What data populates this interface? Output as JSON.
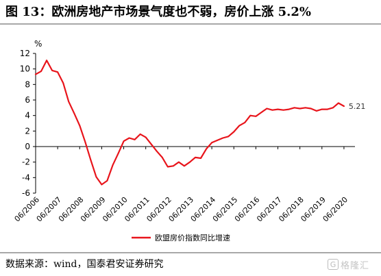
{
  "header": {
    "title": "图 13：欧洲房地产市场景气度也不弱，房价上涨 5.2%"
  },
  "footer": {
    "source": "数据来源：wind，国泰君安证券研究",
    "watermark_icon": "g-logo-icon",
    "watermark_text": "格隆汇"
  },
  "colors": {
    "series": "#e8141b",
    "axis": "#000000",
    "rules": "#a8a8a8"
  },
  "chart_data": {
    "type": "line",
    "unit_label": "%",
    "ylim": [
      -6,
      12
    ],
    "yticks": [
      -6,
      -4,
      -2,
      0,
      2,
      4,
      6,
      8,
      10,
      12
    ],
    "xlim": [
      2006.0,
      2020.5
    ],
    "xtick_labels": [
      "06/2006",
      "06/2007",
      "06/2008",
      "06/2009",
      "06/2010",
      "06/2011",
      "06/2012",
      "06/2013",
      "06/2014",
      "06/2015",
      "06/2016",
      "06/2017",
      "06/2018",
      "06/2019",
      "06/2020"
    ],
    "grid": false,
    "legend": {
      "position": "bottom-center"
    },
    "end_label": "5.21",
    "series": [
      {
        "name": "欧盟房价指数同比增速",
        "color": "#e8141b",
        "points": [
          [
            2006.0,
            9.3
          ],
          [
            2006.25,
            9.7
          ],
          [
            2006.5,
            11.1
          ],
          [
            2006.75,
            9.8
          ],
          [
            2007.0,
            9.6
          ],
          [
            2007.25,
            8.2
          ],
          [
            2007.5,
            5.8
          ],
          [
            2007.75,
            4.3
          ],
          [
            2008.0,
            2.7
          ],
          [
            2008.25,
            0.6
          ],
          [
            2008.5,
            -1.7
          ],
          [
            2008.75,
            -3.9
          ],
          [
            2009.0,
            -4.9
          ],
          [
            2009.25,
            -4.4
          ],
          [
            2009.5,
            -2.4
          ],
          [
            2009.75,
            -0.9
          ],
          [
            2010.0,
            0.7
          ],
          [
            2010.25,
            1.1
          ],
          [
            2010.5,
            0.9
          ],
          [
            2010.75,
            1.6
          ],
          [
            2011.0,
            1.2
          ],
          [
            2011.25,
            0.3
          ],
          [
            2011.5,
            -0.6
          ],
          [
            2011.75,
            -1.4
          ],
          [
            2012.0,
            -2.6
          ],
          [
            2012.25,
            -2.5
          ],
          [
            2012.5,
            -2.0
          ],
          [
            2012.75,
            -2.5
          ],
          [
            2013.0,
            -2.0
          ],
          [
            2013.25,
            -1.4
          ],
          [
            2013.5,
            -1.5
          ],
          [
            2013.75,
            -0.3
          ],
          [
            2014.0,
            0.5
          ],
          [
            2014.25,
            0.8
          ],
          [
            2014.5,
            1.1
          ],
          [
            2014.75,
            1.3
          ],
          [
            2015.0,
            1.9
          ],
          [
            2015.25,
            2.7
          ],
          [
            2015.5,
            3.1
          ],
          [
            2015.75,
            4.0
          ],
          [
            2016.0,
            3.9
          ],
          [
            2016.25,
            4.4
          ],
          [
            2016.5,
            4.9
          ],
          [
            2016.75,
            4.7
          ],
          [
            2017.0,
            4.8
          ],
          [
            2017.25,
            4.7
          ],
          [
            2017.5,
            4.8
          ],
          [
            2017.75,
            5.0
          ],
          [
            2018.0,
            4.9
          ],
          [
            2018.25,
            5.0
          ],
          [
            2018.5,
            4.9
          ],
          [
            2018.75,
            4.6
          ],
          [
            2019.0,
            4.8
          ],
          [
            2019.25,
            4.8
          ],
          [
            2019.5,
            5.0
          ],
          [
            2019.75,
            5.6
          ],
          [
            2020.0,
            5.21
          ]
        ]
      }
    ]
  }
}
